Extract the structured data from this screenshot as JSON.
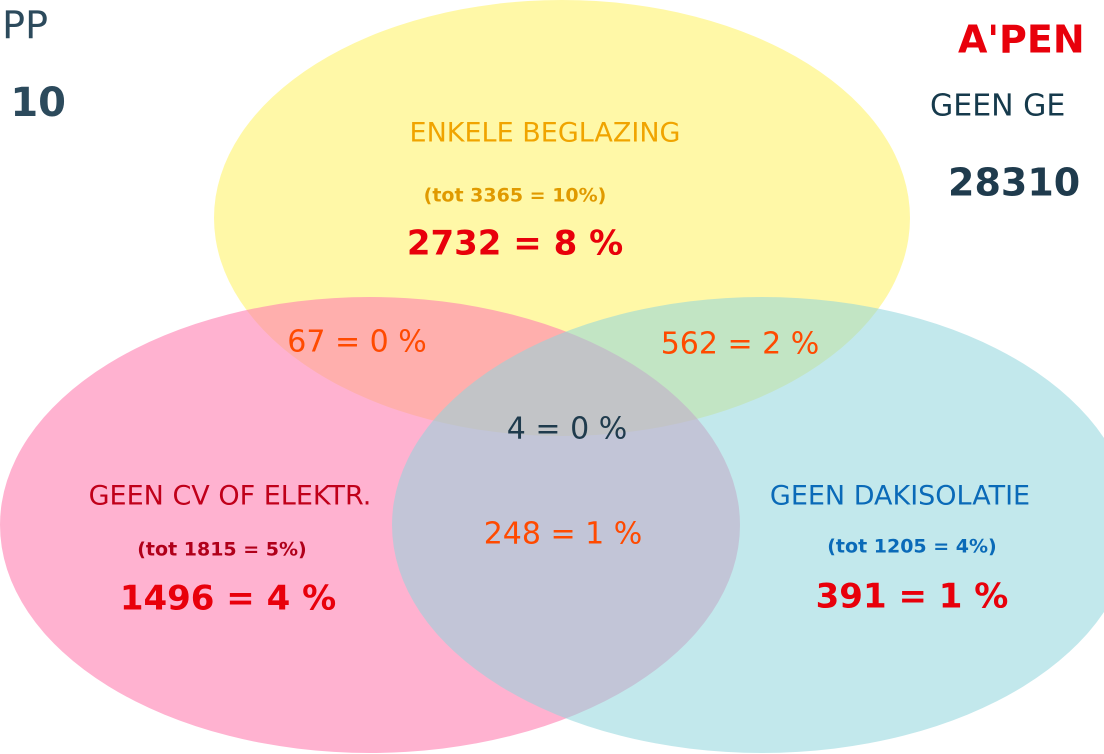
{
  "corner_left": {
    "line1": "PP",
    "line2": "10"
  },
  "corner_right": {
    "line1": "A'PEN",
    "line2": "GEEN GE",
    "line3": "28310"
  },
  "sets": [
    {
      "label": "ENKELE BEGLAZING",
      "total": "(tot 3365 = 10%)",
      "only": "2732 = 8 %"
    },
    {
      "label": "GEEN CV OF ELEKTR.",
      "total": "(tot 1815 = 5%)",
      "only": "1496 = 4 %"
    },
    {
      "label": "GEEN DAKISOLATIE",
      "total": "(tot 1205 = 4%)",
      "only": "391 = 1 %"
    }
  ],
  "intersections": {
    "glazing_cv": "67 = 0 %",
    "glazing_roof": "562 = 2 %",
    "all": "4 = 0 %",
    "cv_roof": "248 = 1 %"
  }
}
